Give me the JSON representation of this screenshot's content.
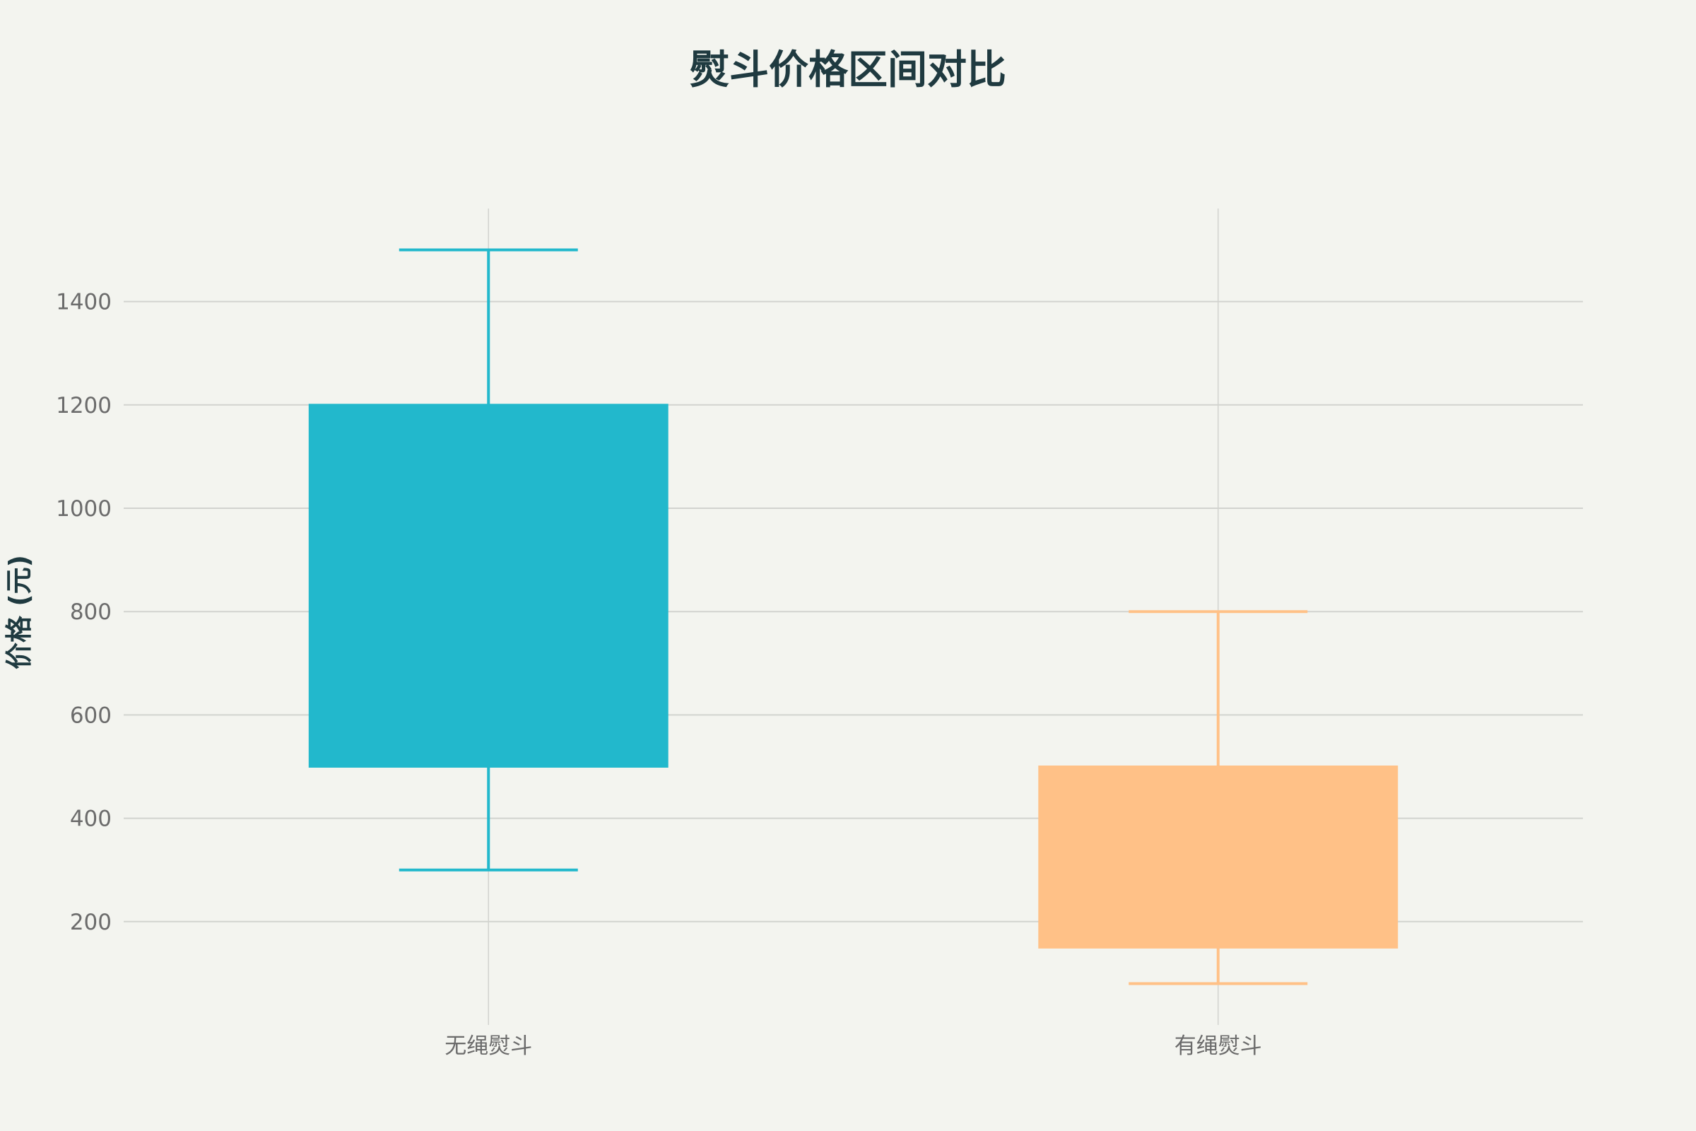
{
  "chart_data": {
    "type": "box",
    "title": "熨斗价格区间对比",
    "xlabel": "",
    "ylabel": "价格 (元)",
    "ylim": [
      0,
      1580
    ],
    "yticks": [
      200,
      400,
      600,
      800,
      1000,
      1200,
      1400
    ],
    "grid": true,
    "categories": [
      "无绳熨斗",
      "有绳熨斗"
    ],
    "series": [
      {
        "category": "无绳熨斗",
        "min": 300,
        "q1": 500,
        "q3": 1200,
        "max": 1500,
        "color": "#22b8cc"
      },
      {
        "category": "有绳熨斗",
        "min": 80,
        "q1": 150,
        "q3": 500,
        "max": 800,
        "color": "#ffc187"
      }
    ]
  }
}
